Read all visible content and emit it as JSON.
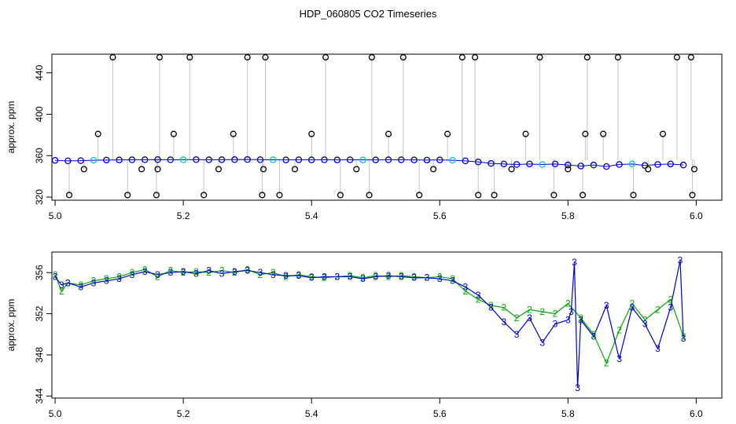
{
  "title": "HDP_060805  CO2 Timeseries",
  "chart_data": [
    {
      "type": "scatter",
      "title": "HDP_060805  CO2 Timeseries",
      "xlabel": "",
      "ylabel": "approx. ppm",
      "xlim": [
        4.995,
        6.04
      ],
      "ylim": [
        317,
        458
      ],
      "xticks": [
        5.0,
        5.2,
        5.4,
        5.6,
        5.8,
        6.0
      ],
      "xtick_labels": [
        "5.0",
        "5.2",
        "5.4",
        "5.6",
        "5.8",
        "6.0"
      ],
      "yticks": [
        320,
        360,
        400,
        440
      ],
      "ytick_labels": [
        "320",
        "360",
        "400",
        "440"
      ],
      "grid": false,
      "colors": {
        "main": "#0000cc",
        "accent": "#00cccc",
        "outlier": "#000000",
        "spike": "#888888"
      },
      "series": [
        {
          "marker": "open-circle",
          "color": "#0000cc",
          "x": [
            5.0,
            5.02,
            5.04,
            5.06,
            5.08,
            5.1,
            5.12,
            5.14,
            5.16,
            5.18,
            5.2,
            5.22,
            5.24,
            5.26,
            5.28,
            5.3,
            5.32,
            5.34,
            5.36,
            5.38,
            5.4,
            5.42,
            5.44,
            5.46,
            5.48,
            5.5,
            5.52,
            5.54,
            5.56,
            5.58,
            5.6,
            5.62,
            5.64,
            5.66,
            5.68,
            5.7,
            5.72,
            5.74,
            5.76,
            5.78,
            5.8,
            5.82,
            5.84,
            5.86,
            5.88,
            5.9,
            5.92,
            5.94,
            5.96,
            5.98
          ],
          "y": [
            355.5,
            355.0,
            355.2,
            355.6,
            355.8,
            355.9,
            356.0,
            356.1,
            356.2,
            356.0,
            356.1,
            356.2,
            356.0,
            356.1,
            356.2,
            356.3,
            356.1,
            356.0,
            355.9,
            356.0,
            355.9,
            356.0,
            355.9,
            356.0,
            355.9,
            355.9,
            356.0,
            356.0,
            355.9,
            355.8,
            355.9,
            355.6,
            355.0,
            354.0,
            352.5,
            352.0,
            351.5,
            352.0,
            351.5,
            352.0,
            351.0,
            350.0,
            351.0,
            349.5,
            351.5,
            352.0,
            350.5,
            351.5,
            352.0,
            351.0
          ]
        },
        {
          "marker": "open-circle-black",
          "color": "#000000",
          "x": [
            5.022,
            5.045,
            5.067,
            5.09,
            5.113,
            5.135,
            5.158,
            5.16,
            5.163,
            5.185,
            5.21,
            5.232,
            5.255,
            5.278,
            5.3,
            5.323,
            5.325,
            5.328,
            5.35,
            5.374,
            5.4,
            5.422,
            5.445,
            5.47,
            5.49,
            5.494,
            5.52,
            5.543,
            5.568,
            5.59,
            5.612,
            5.635,
            5.655,
            5.66,
            5.685,
            5.712,
            5.734,
            5.756,
            5.778,
            5.8,
            5.823,
            5.827,
            5.83,
            5.855,
            5.878,
            5.902,
            5.925,
            5.948,
            5.97,
            5.992,
            5.994,
            5.997
          ],
          "y": [
            322,
            347,
            381,
            455,
            322,
            347,
            322,
            347,
            455,
            381,
            455,
            322,
            347,
            381,
            455,
            322,
            347,
            455,
            322,
            347,
            381,
            455,
            322,
            347,
            322,
            455,
            381,
            455,
            322,
            347,
            381,
            455,
            455,
            322,
            322,
            347,
            381,
            455,
            322,
            347,
            322,
            381,
            455,
            381,
            455,
            322,
            347,
            381,
            455,
            455,
            322,
            347
          ]
        }
      ]
    },
    {
      "type": "line",
      "title": "",
      "xlabel": "",
      "ylabel": "approx. ppm",
      "xlim": [
        4.995,
        6.04
      ],
      "ylim": [
        343.8,
        358
      ],
      "xticks": [
        5.0,
        5.2,
        5.4,
        5.6,
        5.8,
        6.0
      ],
      "xtick_labels": [
        "5.0",
        "5.2",
        "5.4",
        "5.6",
        "5.8",
        "6.0"
      ],
      "yticks": [
        344,
        348,
        352,
        356
      ],
      "ytick_labels": [
        "344",
        "348",
        "352",
        "356"
      ],
      "grid": false,
      "colors": {
        "series2": "#00aa00",
        "series3": "#0000cc"
      },
      "series": [
        {
          "label_char": "2",
          "color": "#00aa00",
          "x": [
            5.0,
            5.01,
            5.02,
            5.04,
            5.06,
            5.08,
            5.1,
            5.12,
            5.14,
            5.16,
            5.18,
            5.2,
            5.22,
            5.24,
            5.26,
            5.28,
            5.3,
            5.32,
            5.34,
            5.36,
            5.38,
            5.4,
            5.42,
            5.44,
            5.46,
            5.48,
            5.5,
            5.52,
            5.54,
            5.56,
            5.58,
            5.6,
            5.62,
            5.64,
            5.66,
            5.68,
            5.7,
            5.72,
            5.74,
            5.76,
            5.78,
            5.8,
            5.82,
            5.84,
            5.86,
            5.88,
            5.9,
            5.92,
            5.94,
            5.96,
            5.98
          ],
          "y": [
            355.8,
            354.2,
            355.0,
            354.8,
            355.2,
            355.4,
            355.6,
            356.0,
            356.3,
            355.6,
            356.2,
            356.0,
            356.1,
            356.0,
            356.2,
            356.0,
            356.3,
            355.8,
            356.0,
            355.6,
            355.8,
            355.6,
            355.5,
            355.6,
            355.7,
            355.5,
            355.7,
            355.6,
            355.7,
            355.6,
            355.5,
            355.6,
            355.4,
            354.2,
            353.4,
            352.8,
            352.6,
            351.6,
            352.4,
            352.2,
            352.0,
            353.0,
            351.6,
            350.0,
            347.2,
            350.4,
            353.0,
            351.4,
            352.4,
            353.4,
            349.8
          ]
        },
        {
          "label_char": "3",
          "color": "#0000cc",
          "x": [
            5.0,
            5.01,
            5.02,
            5.04,
            5.06,
            5.08,
            5.1,
            5.12,
            5.14,
            5.16,
            5.18,
            5.2,
            5.22,
            5.24,
            5.26,
            5.28,
            5.3,
            5.32,
            5.34,
            5.36,
            5.38,
            5.4,
            5.42,
            5.44,
            5.46,
            5.48,
            5.5,
            5.52,
            5.54,
            5.56,
            5.58,
            5.6,
            5.62,
            5.64,
            5.66,
            5.68,
            5.7,
            5.72,
            5.74,
            5.76,
            5.78,
            5.8,
            5.805,
            5.81,
            5.815,
            5.82,
            5.84,
            5.86,
            5.88,
            5.9,
            5.92,
            5.94,
            5.96,
            5.975,
            5.98
          ],
          "y": [
            355.6,
            354.8,
            355.0,
            354.6,
            355.0,
            355.2,
            355.4,
            355.8,
            356.1,
            355.8,
            356.0,
            356.1,
            355.9,
            356.2,
            355.9,
            356.1,
            356.2,
            356.0,
            355.8,
            355.7,
            355.7,
            355.5,
            355.6,
            355.6,
            355.6,
            355.4,
            355.6,
            355.7,
            355.6,
            355.5,
            355.5,
            355.4,
            355.2,
            354.6,
            353.8,
            352.6,
            351.2,
            350.0,
            351.6,
            349.2,
            351.0,
            351.4,
            352.2,
            357.0,
            344.8,
            351.4,
            349.8,
            352.8,
            347.6,
            352.6,
            351.0,
            348.6,
            352.6,
            357.2,
            349.6
          ]
        }
      ]
    }
  ]
}
